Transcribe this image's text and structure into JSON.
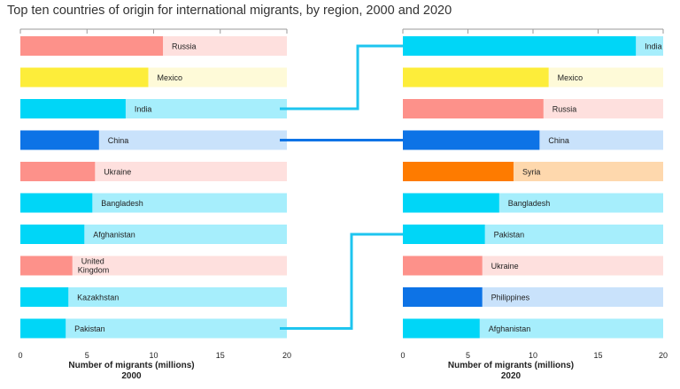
{
  "title": "Top ten countries of origin for international migrants, by region, 2000 and 2020",
  "colors": {
    "Europe": "#fd918a",
    "Europe_light": "#fee0de",
    "Latin America and the Caribbean": "#fded3a",
    "Latin America and the Caribbean_light": "#fefad8",
    "Asia": "#00d6f7",
    "Asia_light": "#a6eefc",
    "Asia_dark": "#0d73e6",
    "Asia_dark_light": "#c9e2fb",
    "Arab region": "#fe7b00",
    "Arab region_light": "#fed8ad",
    "connector": "#1ec5ef"
  },
  "chart_data": [
    {
      "type": "bar",
      "orientation": "horizontal",
      "year_label": "2000",
      "xlabel": "Number of migrants (millions)",
      "xlim": [
        0,
        20
      ],
      "xticks": [
        0,
        5,
        10,
        15,
        20
      ],
      "bars": [
        {
          "country": "Russia",
          "value": 10.7,
          "color": "Europe"
        },
        {
          "country": "Mexico",
          "value": 9.6,
          "color": "Latin America and the Caribbean"
        },
        {
          "country": "India",
          "value": 7.9,
          "color": "Asia"
        },
        {
          "country": "China",
          "value": 5.9,
          "color": "Asia_dark"
        },
        {
          "country": "Ukraine",
          "value": 5.6,
          "color": "Europe"
        },
        {
          "country": "Bangladesh",
          "value": 5.4,
          "color": "Asia"
        },
        {
          "country": "Afghanistan",
          "value": 4.8,
          "color": "Asia"
        },
        {
          "country": "United Kingdom",
          "value": 3.9,
          "color": "Europe"
        },
        {
          "country": "Kazakhstan",
          "value": 3.6,
          "color": "Asia"
        },
        {
          "country": "Pakistan",
          "value": 3.4,
          "color": "Asia"
        }
      ]
    },
    {
      "type": "bar",
      "orientation": "horizontal",
      "year_label": "2020",
      "xlabel": "Number of migrants (millions)",
      "xlim": [
        0,
        20
      ],
      "xticks": [
        0,
        5,
        10,
        15,
        20
      ],
      "bars": [
        {
          "country": "India",
          "value": 17.9,
          "color": "Asia"
        },
        {
          "country": "Mexico",
          "value": 11.2,
          "color": "Latin America and the Caribbean"
        },
        {
          "country": "Russia",
          "value": 10.8,
          "color": "Europe"
        },
        {
          "country": "China",
          "value": 10.5,
          "color": "Asia_dark"
        },
        {
          "country": "Syria",
          "value": 8.5,
          "color": "Arab region"
        },
        {
          "country": "Bangladesh",
          "value": 7.4,
          "color": "Asia"
        },
        {
          "country": "Pakistan",
          "value": 6.3,
          "color": "Asia"
        },
        {
          "country": "Ukraine",
          "value": 6.1,
          "color": "Europe"
        },
        {
          "country": "Philippines",
          "value": 6.1,
          "color": "Asia_dark"
        },
        {
          "country": "Afghanistan",
          "value": 5.9,
          "color": "Asia"
        }
      ]
    }
  ],
  "connectors": [
    "India",
    "China",
    "Pakistan"
  ]
}
